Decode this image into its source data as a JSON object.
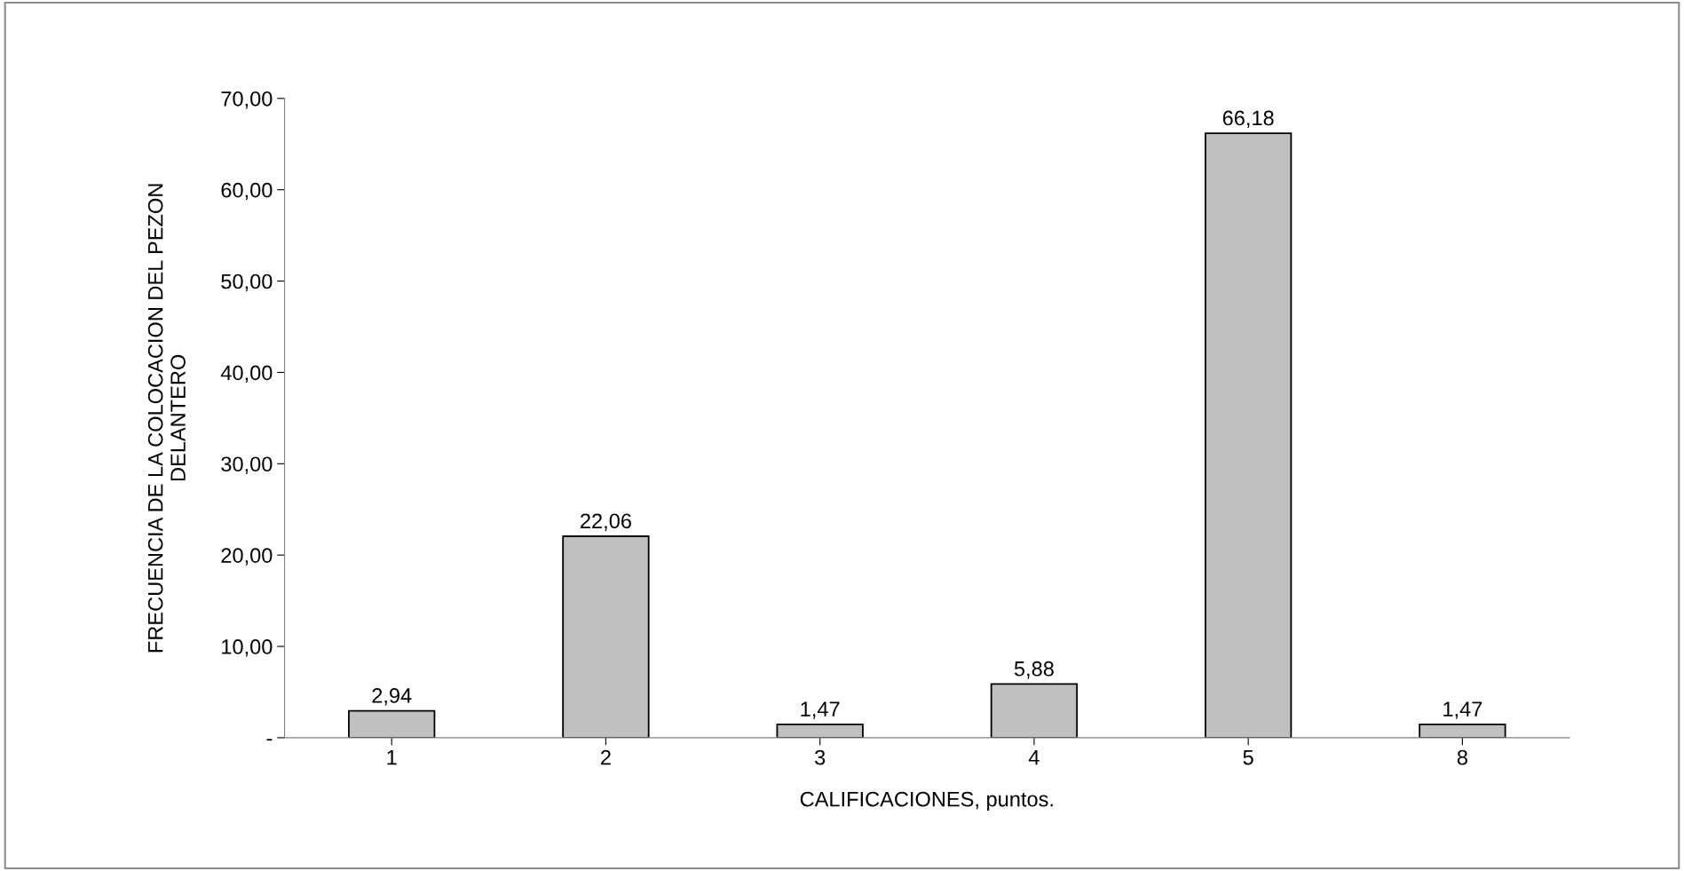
{
  "chart_data": {
    "type": "bar",
    "xlabel": "CALIFICACIONES, puntos.",
    "ylabel": "FRECUENCIA DE LA COLOCACION DEL PEZON\nDELANTERO",
    "categories": [
      "1",
      "2",
      "3",
      "4",
      "5",
      "8"
    ],
    "values": [
      2.94,
      22.06,
      1.47,
      5.88,
      66.18,
      1.47
    ],
    "value_labels": [
      "2,94",
      "22,06",
      "1,47",
      "5,88",
      "66,18",
      "1,47"
    ],
    "color": "#c0c0c0",
    "ylim": [
      0,
      70
    ],
    "yticks": [
      {
        "value": 0,
        "label": "-"
      },
      {
        "value": 10,
        "label": "10,00"
      },
      {
        "value": 20,
        "label": "20,00"
      },
      {
        "value": 30,
        "label": "30,00"
      },
      {
        "value": 40,
        "label": "40,00"
      },
      {
        "value": 50,
        "label": "50,00"
      },
      {
        "value": 60,
        "label": "60,00"
      },
      {
        "value": 70,
        "label": "70,00"
      }
    ],
    "grid": false,
    "legend": false
  }
}
